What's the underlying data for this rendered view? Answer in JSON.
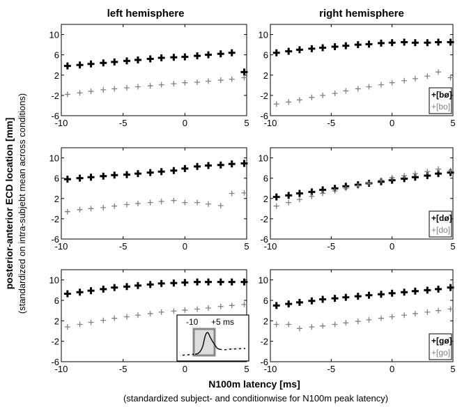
{
  "figure": {
    "ylabel": "posterior-anterior ECD location [mm]",
    "ylabel_sub": "(standardized on intra-subjebt mean across conditions)",
    "xlabel": "N100m latency [ms]",
    "xlabel_sub": "(standardized subject- and conditionwise for N100m peak latency)",
    "columns": [
      "left hemisphere",
      "right hemisphere"
    ],
    "colors": {
      "dark": "#000000",
      "light": "#808080"
    },
    "inset": {
      "label_left": "-10",
      "label_right": "+5 ms"
    }
  },
  "chart_data": [
    {
      "type": "scatter",
      "panel": "left-row1",
      "xlim": [
        -10,
        5
      ],
      "ylim": [
        -6,
        12
      ],
      "xticks": [
        -10,
        -5,
        0,
        5
      ],
      "yticks": [
        10,
        6,
        2,
        -2,
        -6
      ],
      "series": [
        {
          "name": "",
          "color": "#000000",
          "x": [
            -9.5,
            -8.5,
            -7.6,
            -6.6,
            -5.7,
            -4.7,
            -3.8,
            -2.8,
            -1.9,
            -0.9,
            0.0,
            1.0,
            1.9,
            2.9,
            3.8,
            4.8
          ],
          "y": [
            3.8,
            4.0,
            4.2,
            4.4,
            4.6,
            4.8,
            5.0,
            5.2,
            5.4,
            5.5,
            5.6,
            5.8,
            6.0,
            6.2,
            6.4,
            2.6
          ]
        },
        {
          "name": "",
          "color": "#808080",
          "x": [
            -9.5,
            -8.5,
            -7.6,
            -6.6,
            -5.7,
            -4.7,
            -3.8,
            -2.8,
            -1.9,
            -0.9,
            0.0,
            1.0,
            1.9,
            2.9,
            3.8,
            4.8
          ],
          "y": [
            -1.8,
            -1.5,
            -1.2,
            -0.9,
            -0.7,
            -0.5,
            -0.3,
            -0.1,
            0.1,
            0.3,
            0.5,
            0.6,
            0.8,
            1.0,
            1.2,
            1.5
          ]
        }
      ]
    },
    {
      "type": "scatter",
      "panel": "right-row1",
      "xlim": [
        -10,
        5
      ],
      "ylim": [
        -6,
        12
      ],
      "xticks": [
        -10,
        -5,
        0,
        5
      ],
      "yticks": [
        10,
        6,
        2,
        -2,
        -6
      ],
      "legend": [
        "+[bø]",
        "+[bo]"
      ],
      "series": [
        {
          "name": "[bø]",
          "color": "#000000",
          "x": [
            -9.5,
            -8.5,
            -7.6,
            -6.6,
            -5.7,
            -4.7,
            -3.8,
            -2.8,
            -1.9,
            -0.9,
            0.0,
            1.0,
            1.9,
            2.9,
            3.8,
            4.8
          ],
          "y": [
            6.4,
            6.7,
            7.0,
            7.2,
            7.4,
            7.6,
            7.8,
            8.0,
            8.1,
            8.3,
            8.4,
            8.5,
            8.4,
            8.4,
            8.5,
            8.5
          ]
        },
        {
          "name": "[bo]",
          "color": "#808080",
          "x": [
            -9.5,
            -8.5,
            -7.6,
            -6.6,
            -5.7,
            -4.7,
            -3.8,
            -2.8,
            -1.9,
            -0.9,
            0.0,
            1.0,
            1.9,
            2.9,
            3.8,
            4.8
          ],
          "y": [
            -3.7,
            -3.3,
            -2.9,
            -2.4,
            -2.0,
            -1.6,
            -1.1,
            -0.7,
            -0.3,
            0.1,
            0.5,
            0.9,
            1.3,
            1.8,
            2.6,
            1.5
          ]
        }
      ]
    },
    {
      "type": "scatter",
      "panel": "left-row2",
      "xlim": [
        -10,
        5
      ],
      "ylim": [
        -6,
        12
      ],
      "xticks": [
        -10,
        -5,
        0,
        5
      ],
      "yticks": [
        10,
        6,
        2,
        -2,
        -6
      ],
      "series": [
        {
          "name": "",
          "color": "#000000",
          "x": [
            -9.5,
            -8.5,
            -7.6,
            -6.6,
            -5.7,
            -4.7,
            -3.8,
            -2.8,
            -1.9,
            -0.9,
            0.0,
            1.0,
            1.9,
            2.9,
            3.8,
            4.8
          ],
          "y": [
            5.8,
            6.0,
            6.2,
            6.4,
            6.6,
            6.7,
            6.9,
            7.1,
            7.3,
            7.5,
            7.9,
            8.3,
            8.5,
            8.6,
            8.8,
            8.9
          ]
        },
        {
          "name": "",
          "color": "#808080",
          "x": [
            -9.5,
            -8.5,
            -7.6,
            -6.6,
            -5.7,
            -4.7,
            -3.8,
            -2.8,
            -1.9,
            -0.9,
            0.0,
            1.0,
            1.9,
            2.9,
            3.8,
            4.8
          ],
          "y": [
            -0.6,
            -0.2,
            0.0,
            0.2,
            0.5,
            0.8,
            1.0,
            1.2,
            1.4,
            1.6,
            1.2,
            1.2,
            0.9,
            0.6,
            3.0,
            3.1
          ]
        }
      ]
    },
    {
      "type": "scatter",
      "panel": "right-row2",
      "xlim": [
        -10,
        5
      ],
      "ylim": [
        -6,
        12
      ],
      "xticks": [
        -10,
        -5,
        0,
        5
      ],
      "yticks": [
        10,
        6,
        2,
        -2,
        -6
      ],
      "legend": [
        "+[dø]",
        "+[do]"
      ],
      "series": [
        {
          "name": "[dø]",
          "color": "#000000",
          "x": [
            -9.5,
            -8.5,
            -7.6,
            -6.6,
            -5.7,
            -4.7,
            -3.8,
            -2.8,
            -1.9,
            -0.9,
            0.0,
            1.0,
            1.9,
            2.9,
            3.8,
            4.8
          ],
          "y": [
            2.3,
            2.6,
            3.0,
            3.3,
            3.7,
            4.0,
            4.4,
            4.7,
            5.0,
            5.3,
            5.6,
            5.9,
            6.2,
            6.5,
            6.9,
            7.1
          ]
        },
        {
          "name": "[do]",
          "color": "#808080",
          "x": [
            -9.5,
            -8.5,
            -7.6,
            -6.6,
            -5.7,
            -4.7,
            -3.8,
            -2.8,
            -1.9,
            -0.9,
            0.0,
            1.0,
            1.9,
            2.9,
            3.8,
            4.8
          ],
          "y": [
            0.5,
            1.2,
            1.8,
            2.4,
            3.0,
            3.5,
            4.0,
            4.5,
            5.0,
            5.6,
            6.1,
            6.5,
            6.9,
            7.3,
            7.8,
            7.5
          ]
        }
      ]
    },
    {
      "type": "scatter",
      "panel": "left-row3",
      "xlim": [
        -10,
        5
      ],
      "ylim": [
        -6,
        12
      ],
      "xticks": [
        -10,
        -5,
        0,
        5
      ],
      "yticks": [
        10,
        6,
        2,
        -2,
        -6
      ],
      "series": [
        {
          "name": "",
          "color": "#000000",
          "x": [
            -9.5,
            -8.5,
            -7.6,
            -6.6,
            -5.7,
            -4.7,
            -3.8,
            -2.8,
            -1.9,
            -0.9,
            0.0,
            1.0,
            1.9,
            2.9,
            3.8,
            4.8
          ],
          "y": [
            7.3,
            7.6,
            7.9,
            8.2,
            8.5,
            8.7,
            8.9,
            9.1,
            9.3,
            9.4,
            9.5,
            9.6,
            9.6,
            9.6,
            9.6,
            9.6
          ]
        },
        {
          "name": "",
          "color": "#808080",
          "x": [
            -9.5,
            -8.5,
            -7.6,
            -6.6,
            -5.7,
            -4.7,
            -3.8,
            -2.8,
            -1.9,
            -0.9,
            0.0,
            1.0,
            1.9,
            2.9,
            3.8,
            4.8
          ],
          "y": [
            0.8,
            1.3,
            1.7,
            2.1,
            2.5,
            2.8,
            3.1,
            3.4,
            3.7,
            3.9,
            4.1,
            4.3,
            4.5,
            4.8,
            5.0,
            5.2
          ]
        }
      ]
    },
    {
      "type": "scatter",
      "panel": "right-row3",
      "xlim": [
        -10,
        5
      ],
      "ylim": [
        -6,
        12
      ],
      "xticks": [
        -10,
        -5,
        0,
        5
      ],
      "yticks": [
        10,
        6,
        2,
        -2,
        -6
      ],
      "legend": [
        "+[gø]",
        "+[go]"
      ],
      "series": [
        {
          "name": "[gø]",
          "color": "#000000",
          "x": [
            -9.5,
            -8.5,
            -7.6,
            -6.6,
            -5.7,
            -4.7,
            -3.8,
            -2.8,
            -1.9,
            -0.9,
            0.0,
            1.0,
            1.9,
            2.9,
            3.8,
            4.8
          ],
          "y": [
            5.0,
            5.3,
            5.6,
            5.9,
            6.2,
            6.4,
            6.6,
            6.8,
            7.0,
            7.2,
            7.4,
            7.6,
            7.8,
            8.0,
            8.2,
            8.5
          ]
        },
        {
          "name": "[go]",
          "color": "#808080",
          "x": [
            -9.5,
            -8.5,
            -7.6,
            -6.6,
            -5.7,
            -4.7,
            -3.8,
            -2.8,
            -1.9,
            -0.9,
            0.0,
            1.0,
            1.9,
            2.9,
            3.8,
            4.8
          ],
          "y": [
            1.3,
            1.3,
            0.5,
            0.8,
            1.0,
            1.3,
            1.6,
            1.9,
            2.2,
            2.5,
            2.8,
            3.1,
            3.4,
            3.7,
            4.0,
            4.3
          ]
        }
      ]
    }
  ]
}
